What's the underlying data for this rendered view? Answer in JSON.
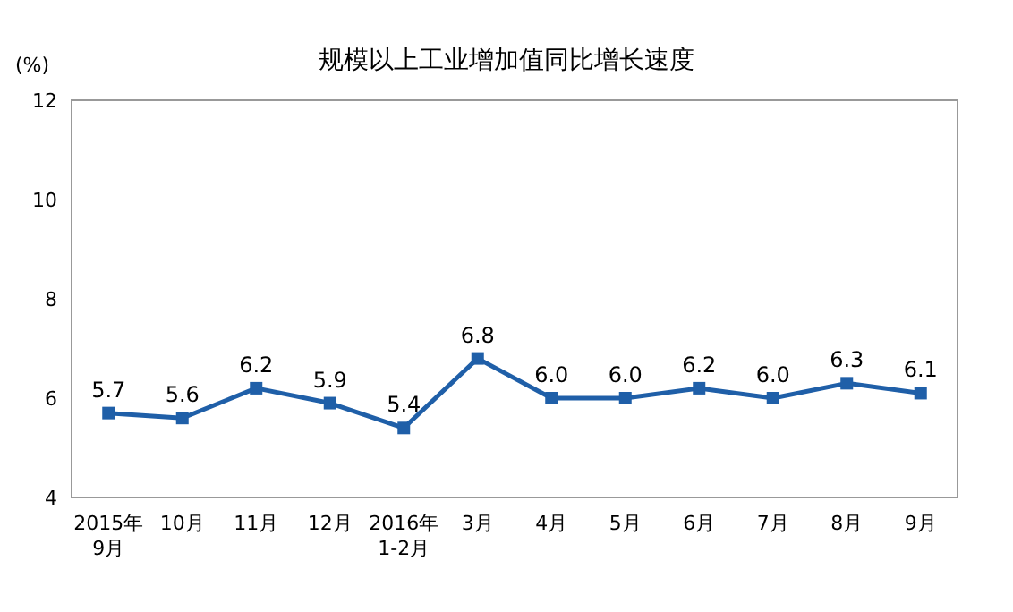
{
  "chart_data": {
    "type": "line",
    "title": "规模以上工业增加值同比增长速度",
    "ylabel": "(%)",
    "categories": [
      "2015年\n9月",
      "10月",
      "11月",
      "12月",
      "2016年\n1-2月",
      "3月",
      "4月",
      "5月",
      "6月",
      "7月",
      "8月",
      "9月"
    ],
    "series": [
      {
        "color": "#1f5fa8",
        "values": [
          5.7,
          5.6,
          6.2,
          5.9,
          5.4,
          6.8,
          6.0,
          6.0,
          6.2,
          6.0,
          6.3,
          6.1
        ],
        "value_labels": [
          "5.7",
          "5.6",
          "6.2",
          "5.9",
          "5.4",
          "6.8",
          "6.0",
          "6.0",
          "6.2",
          "6.0",
          "6.3",
          "6.1"
        ]
      }
    ],
    "ylim": [
      4,
      12
    ],
    "yticks": [
      4,
      6,
      8,
      10,
      12
    ],
    "grid": false,
    "marker": "square",
    "line_style": "solid"
  }
}
